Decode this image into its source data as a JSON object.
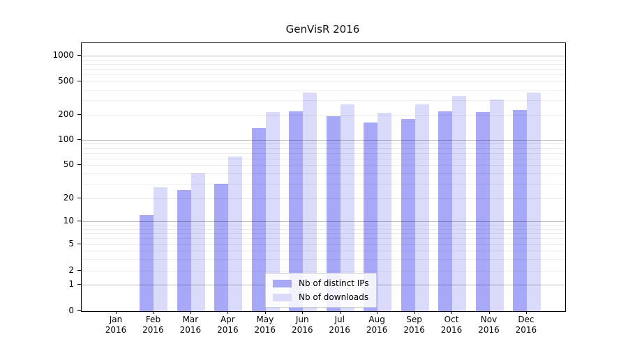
{
  "title": "GenVisR 2016",
  "legend": {
    "items": [
      {
        "label": "Nb of distinct IPs",
        "color_key": "distinct_ips"
      },
      {
        "label": "Nb of downloads",
        "color_key": "downloads"
      }
    ]
  },
  "colors": {
    "distinct_ips": "#a8a8f8",
    "downloads": "#dadafb",
    "grid_major": "rgba(0,0,0,0.28)",
    "grid_minor": "rgba(0,0,0,0.07)",
    "axis": "#000000",
    "legend_border": "#cccccc",
    "legend_bg": "rgba(255,255,255,0.85)"
  },
  "chart_data": {
    "type": "bar",
    "title": "GenVisR 2016",
    "categories": [
      "Jan 2016",
      "Feb 2016",
      "Mar 2016",
      "Apr 2016",
      "May 2016",
      "Jun 2016",
      "Jul 2016",
      "Aug 2016",
      "Sep 2016",
      "Oct 2016",
      "Nov 2016",
      "Dec 2016"
    ],
    "series": [
      {
        "name": "Nb of distinct IPs",
        "values": [
          0,
          12,
          25,
          30,
          138,
          221,
          193,
          161,
          178,
          222,
          218,
          228
        ]
      },
      {
        "name": "Nb of downloads",
        "values": [
          0,
          27,
          40,
          63,
          215,
          370,
          265,
          210,
          265,
          335,
          305,
          370
        ]
      }
    ],
    "xlabel": "",
    "ylabel": "",
    "yscale": "log",
    "yticks": [
      0,
      1,
      2,
      5,
      10,
      20,
      50,
      100,
      200,
      500,
      1000
    ],
    "ytick_labels": [
      "0",
      "1",
      "2",
      "5",
      "10",
      "20",
      "50",
      "100",
      "200",
      "500",
      "1000"
    ],
    "ylim": [
      0,
      1300
    ],
    "grid": true,
    "grid_over_bars": true,
    "legend_position": "lower center"
  }
}
